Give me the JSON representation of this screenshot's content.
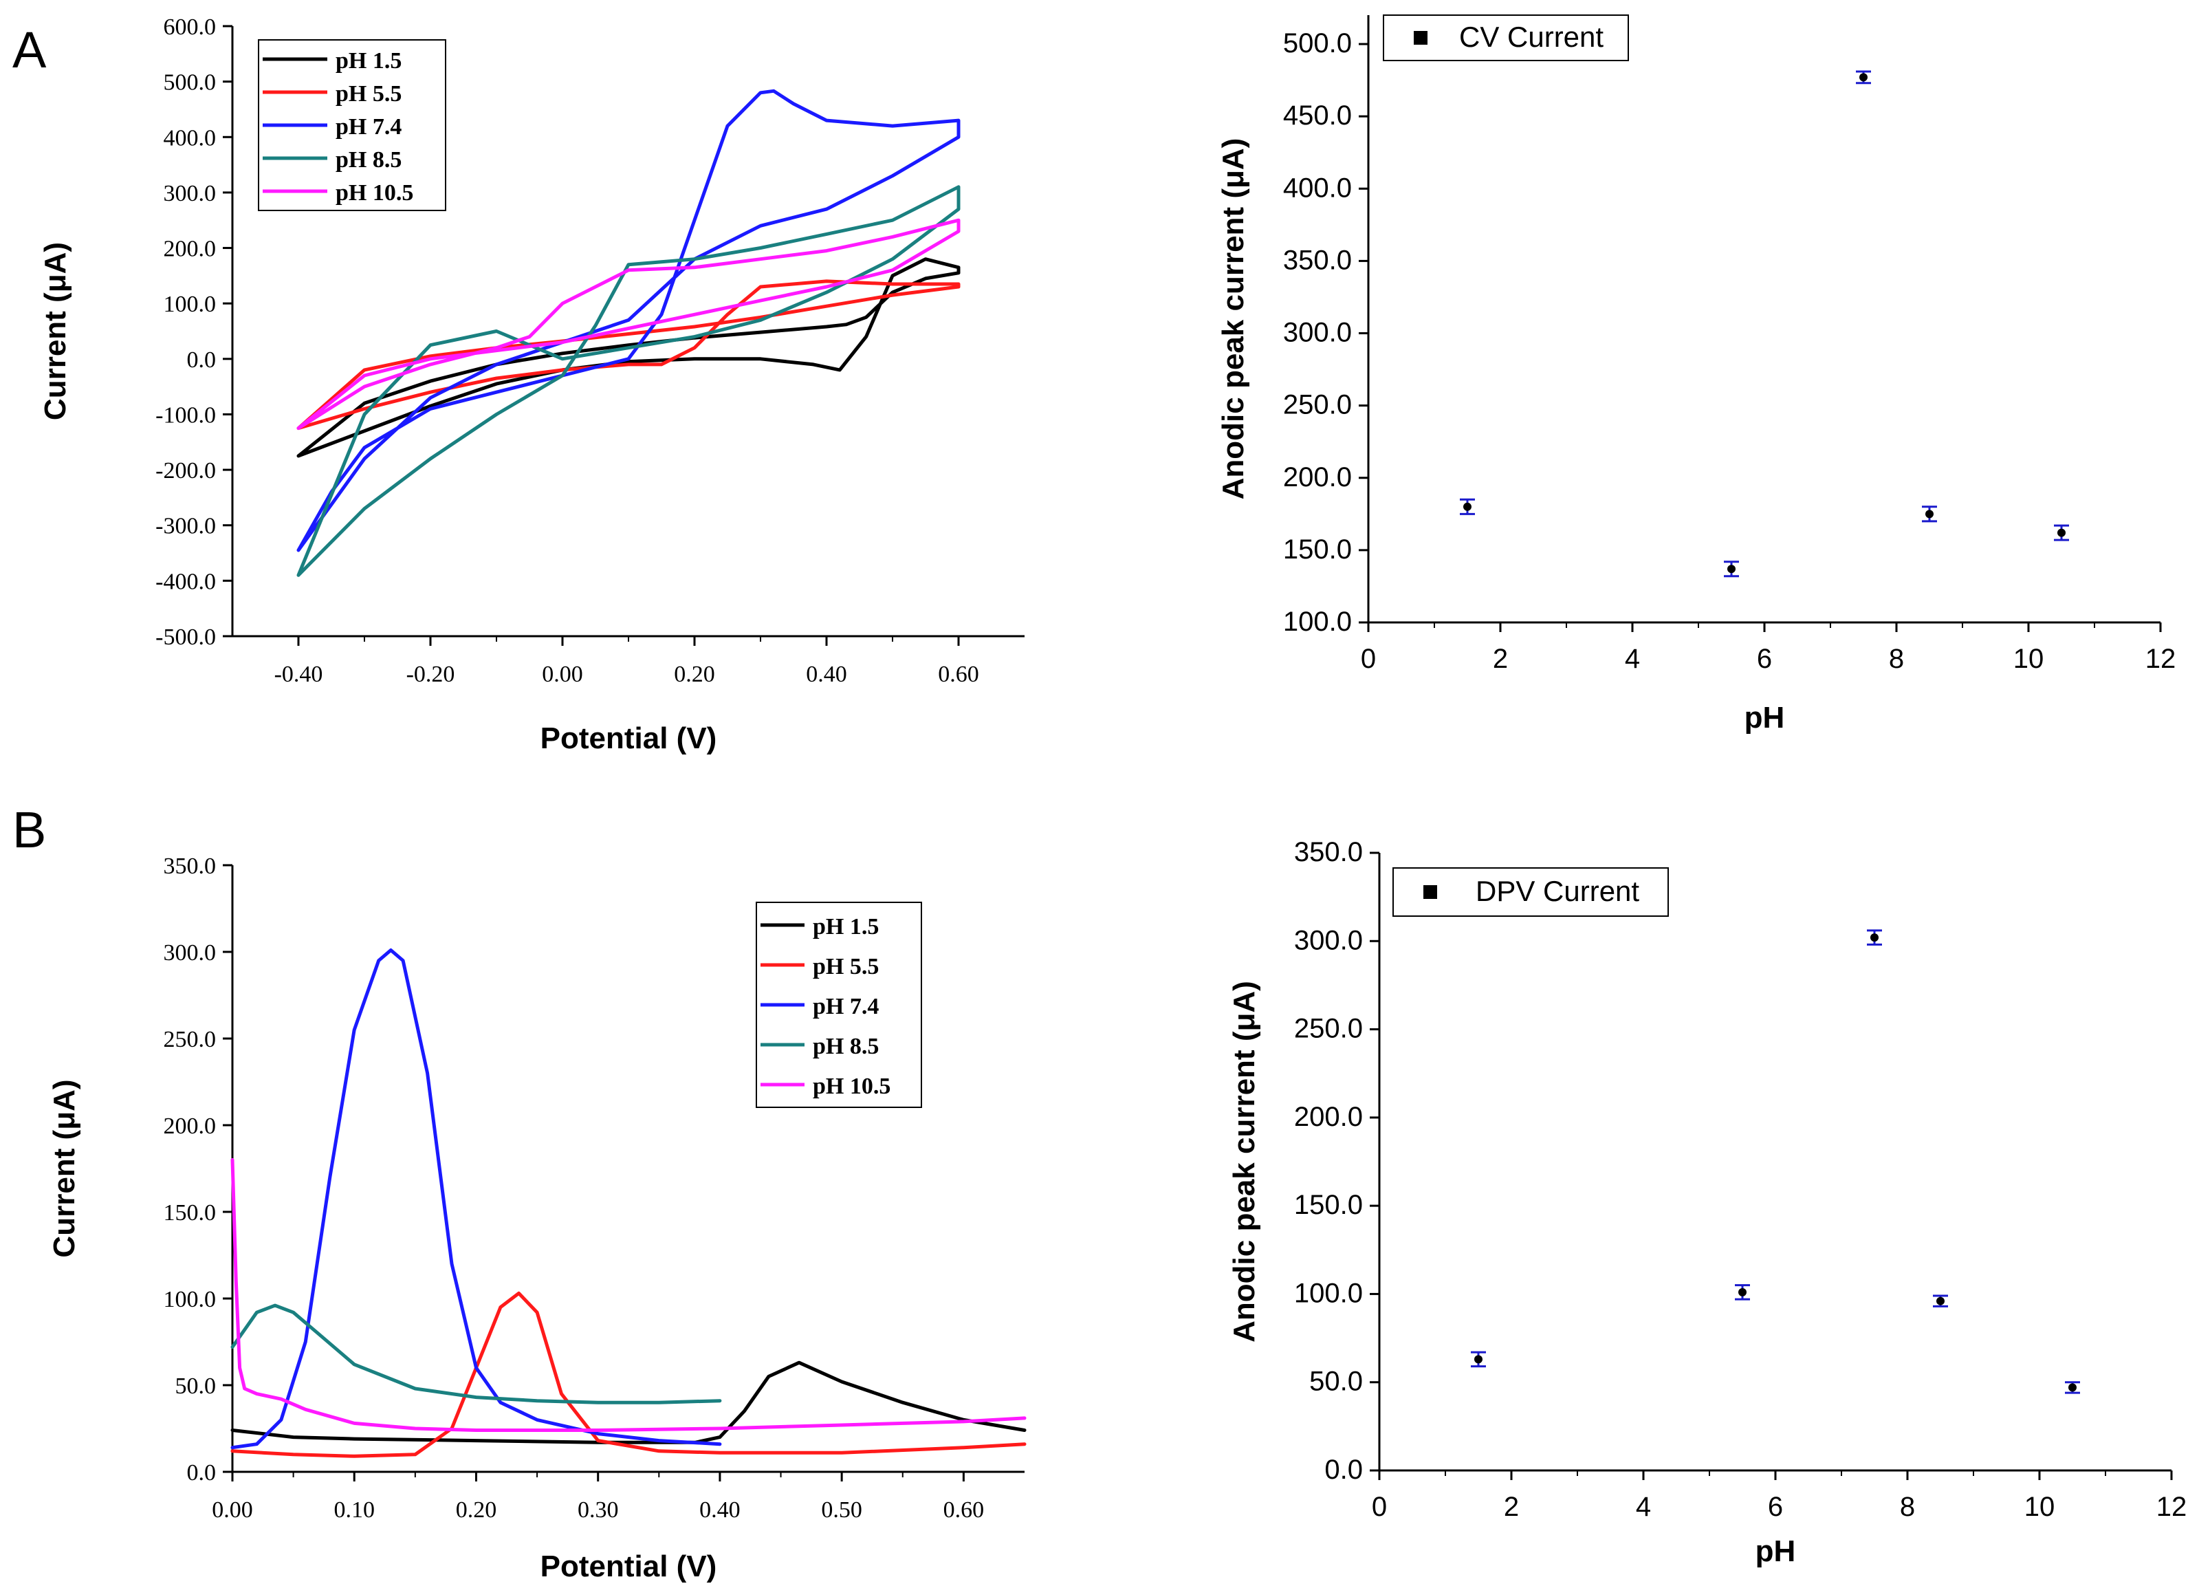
{
  "panel_labels": [
    "A",
    "B"
  ],
  "colors": {
    "pH 1.5": "#000000",
    "pH 5.5": "#ff1a1a",
    "pH 7.4": "#1a1aff",
    "pH 8.5": "#1a8080",
    "pH 10.5": "#ff1aff",
    "marker_fill": "#000000",
    "errorbar": "#1a1acc"
  },
  "chart_data": [
    {
      "id": "cv",
      "type": "line",
      "title": "",
      "xlabel": "Potential (V)",
      "ylabel": "Current (μA)",
      "xlim": [
        -0.5,
        0.7
      ],
      "ylim": [
        -500,
        600
      ],
      "xticks": [
        "-0.40",
        "-0.20",
        "0.00",
        "0.20",
        "0.40",
        "0.60"
      ],
      "yticks": [
        "-500.0",
        "-400.0",
        "-300.0",
        "-200.0",
        "-100.0",
        "0.0",
        "100.0",
        "200.0",
        "300.0",
        "400.0",
        "500.0",
        "600.0"
      ],
      "legend": [
        "pH 1.5",
        "pH 5.5",
        "pH 7.4",
        "pH 8.5",
        "pH 10.5"
      ],
      "legend_position": "top-left",
      "series": [
        {
          "name": "pH 1.5",
          "x": [
            -0.4,
            -0.3,
            -0.2,
            -0.1,
            0,
            0.1,
            0.2,
            0.3,
            0.38,
            0.42,
            0.46,
            0.5,
            0.55,
            0.6,
            0.6,
            0.55,
            0.5,
            0.46,
            0.43,
            0.4,
            0.3,
            0.2,
            0.1,
            0,
            -0.1,
            -0.2,
            -0.3,
            -0.4
          ],
          "y": [
            -175,
            -130,
            -85,
            -45,
            -20,
            -5,
            0,
            0,
            -10,
            -20,
            40,
            150,
            180,
            165,
            155,
            145,
            120,
            75,
            62,
            58,
            48,
            38,
            25,
            10,
            -10,
            -40,
            -80,
            -175
          ]
        },
        {
          "name": "pH 5.5",
          "x": [
            -0.4,
            -0.3,
            -0.2,
            -0.1,
            0,
            0.1,
            0.15,
            0.2,
            0.25,
            0.3,
            0.4,
            0.5,
            0.6,
            0.6,
            0.5,
            0.4,
            0.3,
            0.2,
            0.1,
            0,
            -0.1,
            -0.2,
            -0.3,
            -0.4
          ],
          "y": [
            -125,
            -90,
            -60,
            -35,
            -20,
            -10,
            -10,
            20,
            80,
            130,
            140,
            135,
            135,
            130,
            115,
            95,
            75,
            58,
            45,
            32,
            20,
            5,
            -20,
            -125
          ]
        },
        {
          "name": "pH 7.4",
          "x": [
            -0.4,
            -0.35,
            -0.3,
            -0.2,
            -0.1,
            0,
            0.1,
            0.15,
            0.2,
            0.25,
            0.3,
            0.32,
            0.35,
            0.4,
            0.5,
            0.6,
            0.6,
            0.5,
            0.4,
            0.3,
            0.2,
            0.1,
            0,
            -0.1,
            -0.2,
            -0.3,
            -0.4
          ],
          "y": [
            -345,
            -240,
            -160,
            -90,
            -60,
            -30,
            0,
            80,
            250,
            420,
            480,
            483,
            460,
            430,
            420,
            430,
            400,
            330,
            270,
            240,
            180,
            70,
            30,
            -10,
            -70,
            -180,
            -345
          ]
        },
        {
          "name": "pH 8.5",
          "x": [
            -0.4,
            -0.35,
            -0.3,
            -0.2,
            -0.1,
            0,
            0.05,
            0.1,
            0.15,
            0.2,
            0.3,
            0.4,
            0.5,
            0.6,
            0.6,
            0.5,
            0.4,
            0.3,
            0.2,
            0.1,
            0,
            -0.1,
            -0.2,
            -0.3,
            -0.4
          ],
          "y": [
            -390,
            -330,
            -270,
            -180,
            -100,
            -30,
            60,
            170,
            175,
            180,
            200,
            225,
            250,
            310,
            270,
            180,
            120,
            70,
            40,
            20,
            0,
            50,
            25,
            -100,
            -390
          ]
        },
        {
          "name": "pH 10.5",
          "x": [
            -0.4,
            -0.3,
            -0.2,
            -0.1,
            -0.05,
            0,
            0.1,
            0.2,
            0.3,
            0.4,
            0.5,
            0.6,
            0.6,
            0.5,
            0.4,
            0.3,
            0.2,
            0.1,
            0,
            -0.1,
            -0.2,
            -0.3,
            -0.4
          ],
          "y": [
            -125,
            -50,
            -10,
            20,
            40,
            100,
            160,
            165,
            180,
            195,
            220,
            250,
            230,
            160,
            130,
            105,
            80,
            55,
            30,
            15,
            0,
            -30,
            -125
          ]
        }
      ]
    },
    {
      "id": "cv-peak",
      "type": "scatter",
      "title": "",
      "xlabel": "pH",
      "ylabel": "Anodic peak current (μA)",
      "xlim": [
        0,
        12
      ],
      "ylim": [
        100,
        520
      ],
      "xticks": [
        "0",
        "2",
        "4",
        "6",
        "8",
        "10",
        "12"
      ],
      "yticks": [
        "100.0",
        "150.0",
        "200.0",
        "250.0",
        "300.0",
        "350.0",
        "400.0",
        "450.0",
        "500.0"
      ],
      "legend": [
        "CV Current"
      ],
      "legend_position": "top-left",
      "x": [
        1.5,
        5.5,
        7.5,
        8.5,
        10.5
      ],
      "y": [
        180,
        137,
        477,
        175,
        162
      ],
      "error": [
        5,
        5,
        4,
        5,
        5
      ]
    },
    {
      "id": "dpv",
      "type": "line",
      "title": "",
      "xlabel": "Potential (V)",
      "ylabel": "Current (μA)",
      "xlim": [
        0,
        0.65
      ],
      "ylim": [
        0,
        350
      ],
      "xticks": [
        "0.00",
        "0.10",
        "0.20",
        "0.30",
        "0.40",
        "0.50",
        "0.60"
      ],
      "yticks": [
        "0.0",
        "50.0",
        "100.0",
        "150.0",
        "200.0",
        "250.0",
        "300.0",
        "350.0"
      ],
      "legend": [
        "pH 1.5",
        "pH 5.5",
        "pH 7.4",
        "pH 8.5",
        "pH 10.5"
      ],
      "legend_position": "top-right",
      "series": [
        {
          "name": "pH 1.5",
          "x": [
            0,
            0.05,
            0.1,
            0.2,
            0.3,
            0.38,
            0.4,
            0.42,
            0.44,
            0.465,
            0.5,
            0.55,
            0.6,
            0.65
          ],
          "y": [
            24,
            20,
            19,
            18,
            17,
            17,
            20,
            35,
            55,
            63,
            52,
            40,
            30,
            24
          ]
        },
        {
          "name": "pH 5.5",
          "x": [
            0,
            0.05,
            0.1,
            0.15,
            0.18,
            0.2,
            0.22,
            0.235,
            0.25,
            0.27,
            0.3,
            0.35,
            0.4,
            0.5,
            0.6,
            0.65
          ],
          "y": [
            12,
            10,
            9,
            10,
            25,
            60,
            95,
            103,
            92,
            45,
            18,
            12,
            11,
            11,
            14,
            16
          ]
        },
        {
          "name": "pH 7.4",
          "x": [
            0,
            0.02,
            0.04,
            0.06,
            0.08,
            0.1,
            0.12,
            0.13,
            0.14,
            0.16,
            0.18,
            0.2,
            0.22,
            0.25,
            0.3,
            0.35,
            0.4
          ],
          "y": [
            14,
            16,
            30,
            75,
            170,
            255,
            295,
            301,
            295,
            230,
            120,
            60,
            40,
            30,
            22,
            18,
            16
          ]
        },
        {
          "name": "pH 8.5",
          "x": [
            0,
            0.01,
            0.02,
            0.035,
            0.05,
            0.07,
            0.1,
            0.15,
            0.2,
            0.25,
            0.3,
            0.35,
            0.4
          ],
          "y": [
            72,
            82,
            92,
            96,
            92,
            80,
            62,
            48,
            43,
            41,
            40,
            40,
            41
          ]
        },
        {
          "name": "pH 10.5",
          "x": [
            0,
            0.003,
            0.006,
            0.01,
            0.02,
            0.04,
            0.06,
            0.1,
            0.15,
            0.2,
            0.3,
            0.4,
            0.5,
            0.6,
            0.65
          ],
          "y": [
            180,
            110,
            60,
            48,
            45,
            42,
            36,
            28,
            25,
            24,
            24,
            25,
            27,
            29,
            31
          ]
        }
      ]
    },
    {
      "id": "dpv-peak",
      "type": "scatter",
      "title": "",
      "xlabel": "pH",
      "ylabel": "Anodic peak current (μA)",
      "xlim": [
        0,
        12
      ],
      "ylim": [
        0,
        350
      ],
      "xticks": [
        "0",
        "2",
        "4",
        "6",
        "8",
        "10",
        "12"
      ],
      "yticks": [
        "0.0",
        "50.0",
        "100.0",
        "150.0",
        "200.0",
        "250.0",
        "300.0",
        "350.0"
      ],
      "legend": [
        "DPV Current"
      ],
      "legend_position": "top-left",
      "x": [
        1.5,
        5.5,
        7.5,
        8.5,
        10.5
      ],
      "y": [
        63,
        101,
        302,
        96,
        47
      ],
      "error": [
        4,
        4,
        4,
        3,
        3
      ]
    }
  ]
}
